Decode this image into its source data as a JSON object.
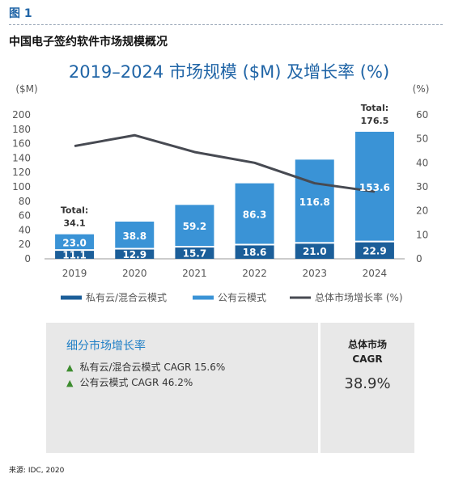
{
  "figure_label": "图 1",
  "figure_title": "中国电子签约软件市场规模概况",
  "chart_data": {
    "type": "bar",
    "subtype": "stacked-bar-with-line",
    "title": "2019–2024 市场规模 ($M) 及增长率 (%)",
    "left_unit": "($M)",
    "right_unit": "(%)",
    "categories": [
      "2019",
      "2020",
      "2021",
      "2022",
      "2023",
      "2024"
    ],
    "ylim": [
      0,
      200
    ],
    "yticks": [
      0,
      20,
      40,
      60,
      80,
      100,
      120,
      140,
      160,
      180,
      200
    ],
    "y2lim": [
      0,
      60
    ],
    "y2ticks": [
      0,
      10,
      20,
      30,
      40,
      50,
      60
    ],
    "series": [
      {
        "name": "私有云/混合云模式",
        "type": "bar",
        "axis": "left",
        "color": "#1b5e99",
        "values": [
          11.1,
          12.9,
          15.7,
          18.6,
          21.0,
          22.9
        ],
        "labels": [
          "11.1",
          "12.9",
          "15.7",
          "18.6",
          "21.0",
          "22.9"
        ]
      },
      {
        "name": "公有云模式",
        "type": "bar",
        "axis": "left",
        "color": "#3a93d6",
        "values": [
          23.0,
          38.8,
          59.2,
          86.3,
          116.8,
          153.6
        ],
        "labels": [
          "23.0",
          "38.8",
          "59.2",
          "86.3",
          "116.8",
          "153.6"
        ]
      },
      {
        "name": "总体市场增长率 (%)",
        "type": "line",
        "axis": "right",
        "color": "#474a52",
        "x": [
          "2019",
          "2020",
          "2021",
          "2022",
          "2023",
          "2024"
        ],
        "values": [
          47,
          51.5,
          44.5,
          40,
          31.5,
          28
        ]
      }
    ],
    "totals": [
      {
        "category": "2019",
        "label": "Total:",
        "value": "34.1"
      },
      {
        "category": "2024",
        "label": "Total:",
        "value": "176.5"
      }
    ],
    "legend_position": "bottom",
    "grid": false
  },
  "panel": {
    "segment_title": "细分市场增长率",
    "segment_items": [
      {
        "marker": "▲",
        "text": "私有云/混合云模式 CAGR 15.6%"
      },
      {
        "marker": "▲",
        "text": "公有云模式 CAGR 46.2%"
      }
    ],
    "total_title_line1": "总体市场",
    "total_title_line2": "CAGR",
    "total_value": "38.9%"
  },
  "source": "来源: IDC, 2020"
}
